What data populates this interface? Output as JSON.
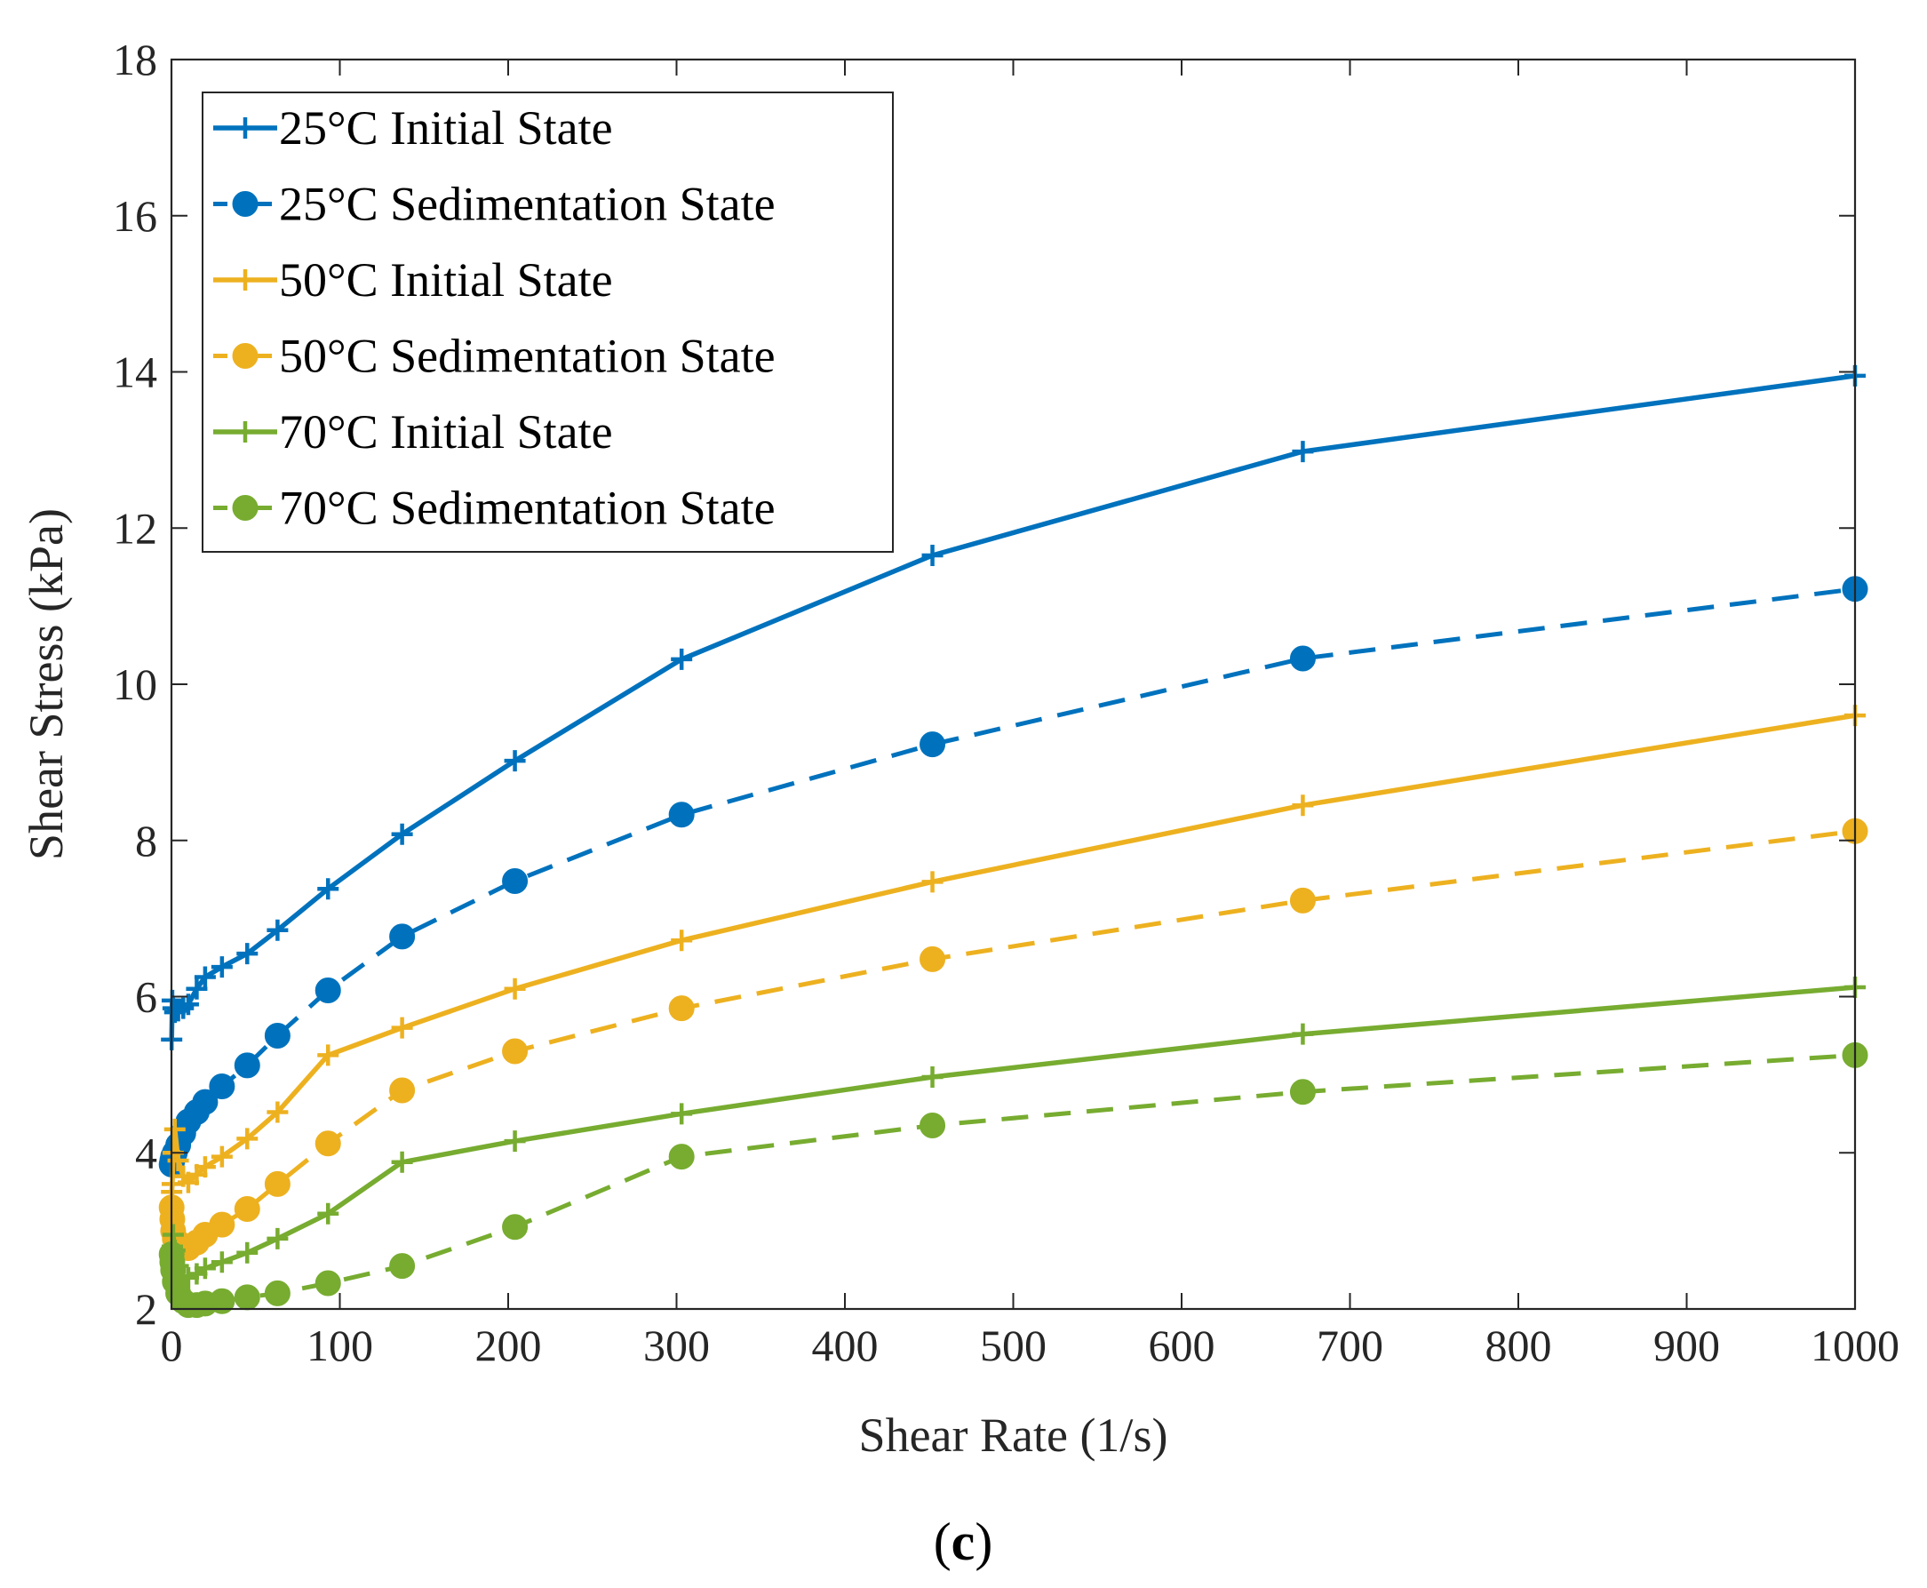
{
  "chart_data": {
    "type": "line",
    "title": "",
    "xlabel": "Shear Rate (1/s)",
    "ylabel": "Shear Stress (kPa)",
    "xlim": [
      0,
      1000
    ],
    "ylim": [
      2,
      18
    ],
    "xticks": [
      0,
      100,
      200,
      300,
      400,
      500,
      600,
      700,
      800,
      900,
      1000
    ],
    "yticks": [
      2,
      4,
      6,
      8,
      10,
      12,
      14,
      16,
      18
    ],
    "grid": false,
    "legend_position": "top-left",
    "caption": {
      "open": "(",
      "letter": "c",
      "close": ")"
    },
    "series": [
      {
        "name": "25°C Initial State",
        "color": "#0072BD",
        "line": "solid",
        "marker": "plus",
        "x": [
          0.1,
          0.5,
          1,
          2,
          4,
          7,
          10,
          15,
          20,
          30,
          45,
          63,
          93,
          137,
          204,
          303,
          452,
          672,
          1000
        ],
        "y": [
          5.45,
          5.95,
          5.85,
          5.8,
          5.82,
          5.85,
          5.9,
          6.1,
          6.25,
          6.38,
          6.55,
          6.85,
          7.38,
          8.08,
          9.02,
          10.32,
          11.65,
          12.98,
          13.95
        ]
      },
      {
        "name": "25°C Sedimentation State",
        "color": "#0072BD",
        "line": "dashed",
        "marker": "circle",
        "x": [
          0.1,
          0.5,
          1,
          2,
          4,
          7,
          10,
          15,
          20,
          30,
          45,
          63,
          93,
          137,
          204,
          303,
          452,
          672,
          1000
        ],
        "y": [
          3.85,
          3.9,
          3.95,
          4.0,
          4.1,
          4.25,
          4.4,
          4.52,
          4.65,
          4.85,
          5.12,
          5.5,
          6.08,
          6.77,
          7.48,
          8.33,
          9.23,
          10.33,
          11.22
        ]
      },
      {
        "name": "50°C Initial State",
        "color": "#EDB120",
        "line": "solid",
        "marker": "plus",
        "x": [
          0.1,
          0.5,
          1,
          2,
          4,
          7,
          10,
          15,
          20,
          30,
          45,
          63,
          93,
          137,
          204,
          303,
          452,
          672,
          1000
        ],
        "y": [
          3.5,
          3.6,
          4.0,
          4.3,
          3.9,
          3.7,
          3.62,
          3.72,
          3.82,
          3.95,
          4.18,
          4.52,
          5.25,
          5.6,
          6.1,
          6.72,
          7.47,
          8.45,
          9.6
        ]
      },
      {
        "name": "50°C Sedimentation State",
        "color": "#EDB120",
        "line": "dashed",
        "marker": "circle",
        "x": [
          0.1,
          0.5,
          1,
          2,
          4,
          7,
          10,
          15,
          20,
          30,
          45,
          63,
          93,
          137,
          204,
          303,
          452,
          672,
          1000
        ],
        "y": [
          3.3,
          3.15,
          3.0,
          2.9,
          2.85,
          2.8,
          2.78,
          2.85,
          2.95,
          3.08,
          3.28,
          3.6,
          4.12,
          4.8,
          5.3,
          5.85,
          6.48,
          7.23,
          8.12
        ]
      },
      {
        "name": "70°C Initial State",
        "color": "#77AC30",
        "line": "solid",
        "marker": "plus",
        "x": [
          0.1,
          0.5,
          1,
          2,
          4,
          7,
          10,
          15,
          20,
          30,
          45,
          63,
          93,
          137,
          204,
          303,
          452,
          672,
          1000
        ],
        "y": [
          2.55,
          2.8,
          2.95,
          2.75,
          2.55,
          2.42,
          2.4,
          2.45,
          2.52,
          2.6,
          2.72,
          2.9,
          3.22,
          3.88,
          4.15,
          4.5,
          4.97,
          5.52,
          6.12
        ]
      },
      {
        "name": "70°C Sedimentation State",
        "color": "#77AC30",
        "line": "dashed",
        "marker": "circle",
        "x": [
          0.1,
          0.5,
          1,
          2,
          4,
          7,
          10,
          15,
          20,
          30,
          45,
          63,
          93,
          137,
          204,
          303,
          452,
          672,
          1000
        ],
        "y": [
          2.7,
          2.6,
          2.5,
          2.35,
          2.2,
          2.1,
          2.05,
          2.05,
          2.07,
          2.1,
          2.15,
          2.2,
          2.33,
          2.55,
          3.05,
          3.95,
          4.35,
          4.78,
          5.25
        ]
      }
    ]
  }
}
